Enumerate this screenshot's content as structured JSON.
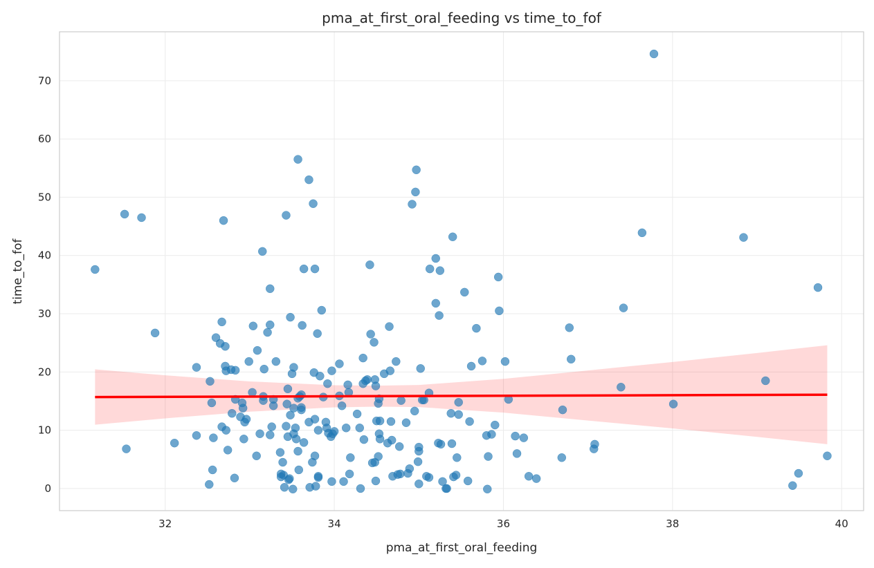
{
  "chart_data": {
    "type": "scatter",
    "title": "pma_at_first_oral_feeding vs time_to_fof",
    "xlabel": "pma_at_first_oral_feeding",
    "ylabel": "time_to_fof",
    "xlim": [
      30.75,
      40.26
    ],
    "ylim": [
      -3.8,
      78.4
    ],
    "xticks": [
      32,
      34,
      36,
      38,
      40
    ],
    "yticks": [
      0,
      10,
      20,
      30,
      40,
      50,
      60,
      70
    ],
    "grid": true,
    "colors": {
      "points": "#1f77b4",
      "regression": "#ff0000",
      "ci_band": "#ff0000"
    },
    "regression": {
      "x": [
        31.17,
        39.83
      ],
      "y": [
        15.7,
        16.1
      ]
    },
    "ci_band": {
      "x": [
        31.17,
        32,
        33,
        34,
        34.5,
        35,
        36,
        37,
        38,
        39,
        39.83
      ],
      "half_width": [
        4.75,
        3.7,
        2.6,
        1.9,
        1.8,
        1.9,
        2.9,
        4.3,
        5.7,
        7.2,
        8.5
      ]
    },
    "points": [
      [
        31.17,
        37.6
      ],
      [
        31.52,
        47.1
      ],
      [
        31.72,
        46.5
      ],
      [
        31.88,
        26.7
      ],
      [
        31.54,
        6.8
      ],
      [
        32.11,
        7.8
      ],
      [
        32.37,
        20.8
      ],
      [
        32.37,
        9.1
      ],
      [
        32.53,
        18.4
      ],
      [
        32.55,
        14.7
      ],
      [
        32.56,
        3.2
      ],
      [
        32.52,
        0.7
      ],
      [
        32.57,
        8.7
      ],
      [
        32.6,
        25.9
      ],
      [
        32.65,
        24.9
      ],
      [
        32.67,
        28.6
      ],
      [
        32.69,
        46.0
      ],
      [
        32.67,
        10.6
      ],
      [
        32.71,
        21.0
      ],
      [
        32.71,
        24.4
      ],
      [
        32.72,
        20.2
      ],
      [
        32.72,
        10.0
      ],
      [
        32.74,
        6.6
      ],
      [
        32.78,
        20.4
      ],
      [
        32.79,
        12.9
      ],
      [
        32.82,
        1.8
      ],
      [
        32.83,
        20.3
      ],
      [
        32.83,
        15.3
      ],
      [
        32.89,
        12.3
      ],
      [
        32.91,
        14.7
      ],
      [
        32.92,
        13.8
      ],
      [
        32.93,
        8.5
      ],
      [
        32.94,
        11.4
      ],
      [
        32.96,
        11.9
      ],
      [
        32.99,
        21.8
      ],
      [
        33.03,
        16.5
      ],
      [
        33.04,
        27.9
      ],
      [
        33.08,
        5.6
      ],
      [
        33.09,
        23.7
      ],
      [
        33.12,
        9.4
      ],
      [
        33.15,
        40.7
      ],
      [
        33.16,
        15.8
      ],
      [
        33.17,
        20.5
      ],
      [
        33.16,
        15.1
      ],
      [
        33.21,
        26.8
      ],
      [
        33.24,
        34.3
      ],
      [
        33.24,
        28.1
      ],
      [
        33.24,
        9.2
      ],
      [
        33.26,
        10.6
      ],
      [
        33.28,
        15.3
      ],
      [
        33.28,
        14.2
      ],
      [
        33.31,
        21.8
      ],
      [
        33.36,
        6.2
      ],
      [
        33.37,
        2.5
      ],
      [
        33.37,
        2.0
      ],
      [
        33.39,
        4.5
      ],
      [
        33.4,
        2.3
      ],
      [
        33.41,
        0.2
      ],
      [
        33.43,
        46.9
      ],
      [
        33.44,
        14.5
      ],
      [
        33.45,
        17.1
      ],
      [
        33.43,
        10.7
      ],
      [
        33.45,
        8.9
      ],
      [
        33.46,
        1.5
      ],
      [
        33.47,
        1.7
      ],
      [
        33.48,
        29.4
      ],
      [
        33.48,
        12.6
      ],
      [
        33.5,
        19.7
      ],
      [
        33.51,
        -0.1
      ],
      [
        33.52,
        20.8
      ],
      [
        33.52,
        13.8
      ],
      [
        33.52,
        9.4
      ],
      [
        33.54,
        10.4
      ],
      [
        33.55,
        8.5
      ],
      [
        33.57,
        56.5
      ],
      [
        33.57,
        15.5
      ],
      [
        33.57,
        6.4
      ],
      [
        33.58,
        3.2
      ],
      [
        33.59,
        15.8
      ],
      [
        33.61,
        16.1
      ],
      [
        33.61,
        13.9
      ],
      [
        33.61,
        13.5
      ],
      [
        33.62,
        28.0
      ],
      [
        33.64,
        37.7
      ],
      [
        33.64,
        7.9
      ],
      [
        33.7,
        53.0
      ],
      [
        33.7,
        11.4
      ],
      [
        33.71,
        0.2
      ],
      [
        33.74,
        4.5
      ],
      [
        33.75,
        48.9
      ],
      [
        33.77,
        37.7
      ],
      [
        33.76,
        19.9
      ],
      [
        33.77,
        11.9
      ],
      [
        33.77,
        5.6
      ],
      [
        33.78,
        0.4
      ],
      [
        33.8,
        26.6
      ],
      [
        33.81,
        10.0
      ],
      [
        33.81,
        2.1
      ],
      [
        33.81,
        1.9
      ],
      [
        33.83,
        19.3
      ],
      [
        33.85,
        30.6
      ],
      [
        33.87,
        15.7
      ],
      [
        33.9,
        11.4
      ],
      [
        33.91,
        10.4
      ],
      [
        33.92,
        18.0
      ],
      [
        33.93,
        9.5
      ],
      [
        33.96,
        8.9
      ],
      [
        33.97,
        20.2
      ],
      [
        33.97,
        1.2
      ],
      [
        33.98,
        9.4
      ],
      [
        34.0,
        9.8
      ],
      [
        34.06,
        21.4
      ],
      [
        34.06,
        15.9
      ],
      [
        34.09,
        14.2
      ],
      [
        34.11,
        1.2
      ],
      [
        34.14,
        10.4
      ],
      [
        34.16,
        17.8
      ],
      [
        34.17,
        16.5
      ],
      [
        34.18,
        2.5
      ],
      [
        34.19,
        5.3
      ],
      [
        34.27,
        12.8
      ],
      [
        34.3,
        10.4
      ],
      [
        34.31,
        0.0
      ],
      [
        34.34,
        22.4
      ],
      [
        34.34,
        18.0
      ],
      [
        34.35,
        8.4
      ],
      [
        34.37,
        18.5
      ],
      [
        34.39,
        18.7
      ],
      [
        34.42,
        38.4
      ],
      [
        34.43,
        26.5
      ],
      [
        34.45,
        4.4
      ],
      [
        34.47,
        25.1
      ],
      [
        34.48,
        18.7
      ],
      [
        34.48,
        4.5
      ],
      [
        34.49,
        17.6
      ],
      [
        34.49,
        1.3
      ],
      [
        34.5,
        11.6
      ],
      [
        34.52,
        5.5
      ],
      [
        34.52,
        14.6
      ],
      [
        34.53,
        9.4
      ],
      [
        34.53,
        15.4
      ],
      [
        34.54,
        11.6
      ],
      [
        34.54,
        8.5
      ],
      [
        34.59,
        19.7
      ],
      [
        34.63,
        7.8
      ],
      [
        34.65,
        27.8
      ],
      [
        34.66,
        20.2
      ],
      [
        34.67,
        11.5
      ],
      [
        34.68,
        8.3
      ],
      [
        34.69,
        2.1
      ],
      [
        34.73,
        21.8
      ],
      [
        34.75,
        2.4
      ],
      [
        34.77,
        7.2
      ],
      [
        34.78,
        2.5
      ],
      [
        34.79,
        15.1
      ],
      [
        34.85,
        11.3
      ],
      [
        34.87,
        2.6
      ],
      [
        34.89,
        3.4
      ],
      [
        34.92,
        48.8
      ],
      [
        34.95,
        13.3
      ],
      [
        34.96,
        50.9
      ],
      [
        34.97,
        54.7
      ],
      [
        34.99,
        4.6
      ],
      [
        35.0,
        6.4
      ],
      [
        35.0,
        7.1
      ],
      [
        35.0,
        0.8
      ],
      [
        35.02,
        20.6
      ],
      [
        35.04,
        15.2
      ],
      [
        35.06,
        15.2
      ],
      [
        35.09,
        2.1
      ],
      [
        35.12,
        1.9
      ],
      [
        35.12,
        16.4
      ],
      [
        35.13,
        37.7
      ],
      [
        35.2,
        39.5
      ],
      [
        35.2,
        31.8
      ],
      [
        35.23,
        7.8
      ],
      [
        35.24,
        29.7
      ],
      [
        35.25,
        37.4
      ],
      [
        35.26,
        7.6
      ],
      [
        35.28,
        1.2
      ],
      [
        35.32,
        0.0
      ],
      [
        35.33,
        0.0
      ],
      [
        35.38,
        12.9
      ],
      [
        35.39,
        7.7
      ],
      [
        35.4,
        43.2
      ],
      [
        35.41,
        2.0
      ],
      [
        35.44,
        2.3
      ],
      [
        35.45,
        5.3
      ],
      [
        35.47,
        14.8
      ],
      [
        35.47,
        12.7
      ],
      [
        35.54,
        33.7
      ],
      [
        35.58,
        1.3
      ],
      [
        35.6,
        11.5
      ],
      [
        35.62,
        21.0
      ],
      [
        35.68,
        27.5
      ],
      [
        35.75,
        21.9
      ],
      [
        35.8,
        9.1
      ],
      [
        35.81,
        -0.1
      ],
      [
        35.82,
        5.5
      ],
      [
        35.86,
        9.3
      ],
      [
        35.9,
        10.9
      ],
      [
        35.94,
        36.3
      ],
      [
        35.95,
        30.5
      ],
      [
        36.02,
        21.8
      ],
      [
        36.06,
        15.3
      ],
      [
        36.14,
        9.0
      ],
      [
        36.16,
        6.0
      ],
      [
        36.24,
        8.7
      ],
      [
        36.3,
        2.1
      ],
      [
        36.39,
        1.7
      ],
      [
        36.69,
        5.3
      ],
      [
        36.7,
        13.5
      ],
      [
        36.78,
        27.6
      ],
      [
        36.8,
        22.2
      ],
      [
        37.07,
        6.8
      ],
      [
        37.08,
        7.6
      ],
      [
        37.39,
        17.4
      ],
      [
        37.42,
        31.0
      ],
      [
        37.64,
        43.9
      ],
      [
        37.78,
        74.6
      ],
      [
        38.01,
        14.5
      ],
      [
        38.84,
        43.1
      ],
      [
        39.1,
        18.5
      ],
      [
        39.42,
        0.5
      ],
      [
        39.49,
        2.6
      ],
      [
        39.72,
        34.5
      ],
      [
        39.83,
        5.6
      ]
    ]
  }
}
